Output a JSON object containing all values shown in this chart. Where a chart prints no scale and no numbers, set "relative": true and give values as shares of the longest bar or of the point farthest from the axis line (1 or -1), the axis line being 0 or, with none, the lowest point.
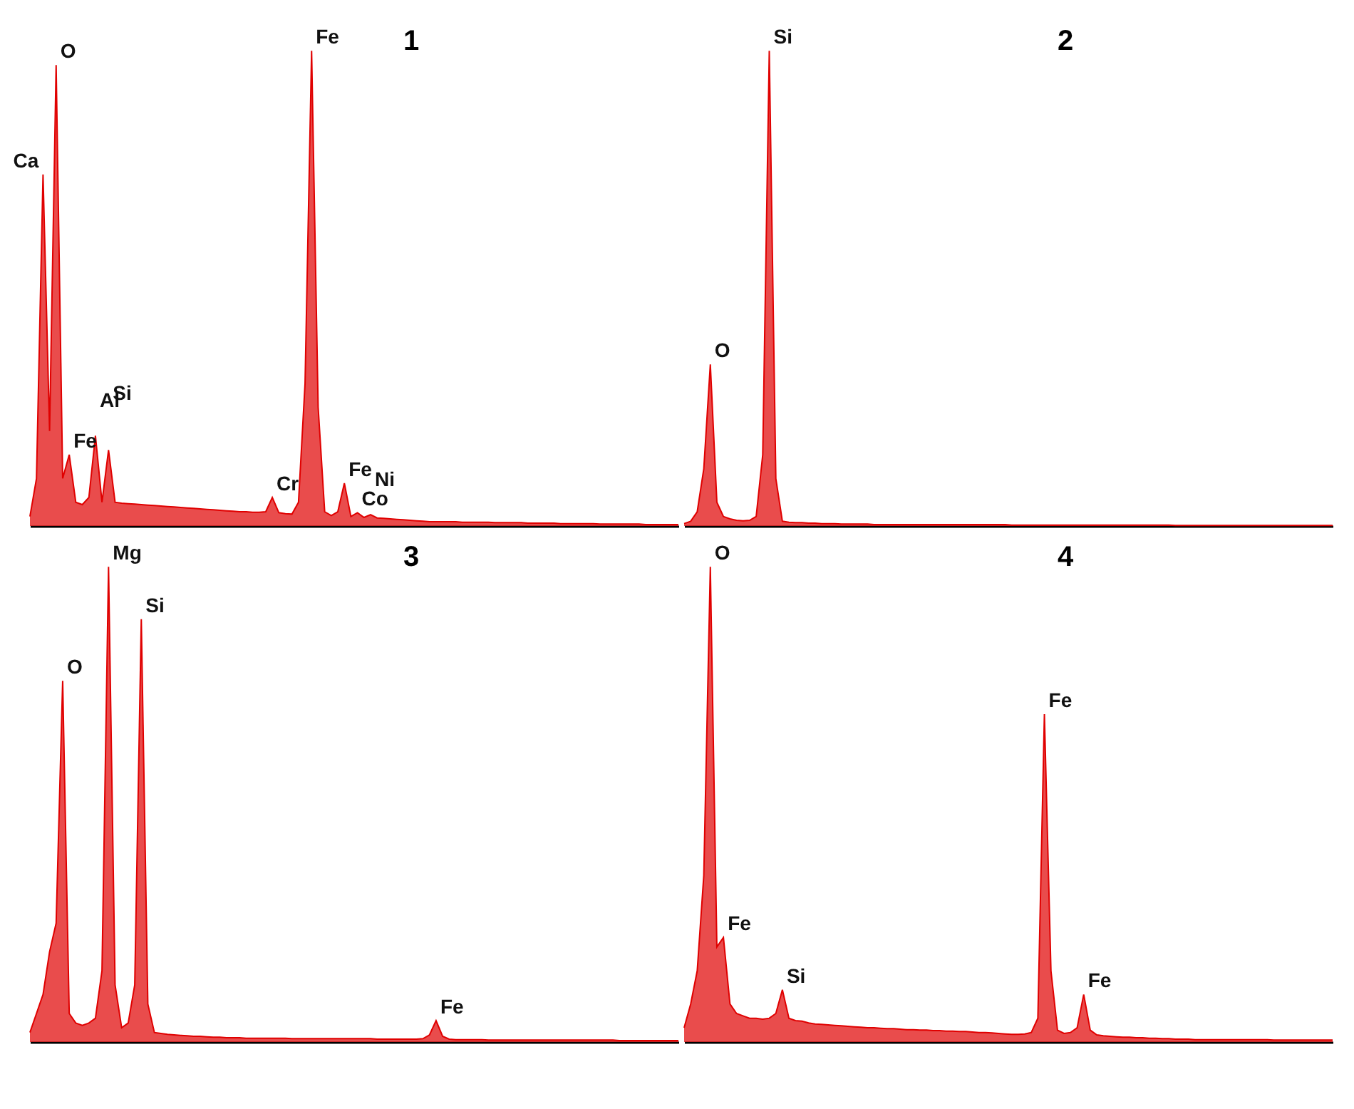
{
  "chart_data": [
    {
      "type": "area",
      "title": "1",
      "relative": true,
      "tick_labels": false,
      "color": "#e00000",
      "categories": [
        null,
        null,
        null,
        null,
        null,
        null,
        null,
        null,
        null,
        null,
        null,
        null,
        null,
        null,
        null,
        null,
        null,
        null,
        null,
        null,
        null,
        null,
        null,
        null,
        null,
        null,
        null,
        null,
        null,
        null,
        null,
        null,
        null,
        null,
        null,
        null,
        null,
        null,
        null,
        null,
        null,
        null,
        null,
        null,
        null,
        null,
        null,
        null,
        null,
        null,
        null,
        null,
        null,
        null,
        null,
        null,
        null,
        null,
        null,
        null,
        null,
        null,
        null,
        null,
        null,
        null,
        null,
        null,
        null,
        null,
        null,
        null,
        null,
        null,
        null,
        null,
        null,
        null,
        null,
        null,
        null,
        null,
        null,
        null,
        null,
        null,
        null,
        null,
        null,
        null,
        null,
        null,
        null,
        null,
        null,
        null,
        null,
        null,
        null,
        null
      ],
      "values": [
        0.02,
        0.1,
        0.74,
        0.2,
        0.97,
        0.1,
        0.15,
        0.05,
        0.045,
        0.06,
        0.19,
        0.05,
        0.16,
        0.05,
        0.048,
        0.047,
        0.046,
        0.045,
        0.044,
        0.043,
        0.042,
        0.041,
        0.04,
        0.039,
        0.038,
        0.037,
        0.036,
        0.035,
        0.034,
        0.033,
        0.032,
        0.031,
        0.03,
        0.03,
        0.029,
        0.029,
        0.03,
        0.06,
        0.028,
        0.026,
        0.025,
        0.05,
        0.3,
        1,
        0.25,
        0.03,
        0.022,
        0.03,
        0.09,
        0.02,
        0.028,
        0.018,
        0.024,
        0.017,
        0.016,
        0.015,
        0.014,
        0.013,
        0.012,
        0.011,
        0.01,
        0.009,
        0.009,
        0.009,
        0.009,
        0.009,
        0.008,
        0.008,
        0.008,
        0.008,
        0.008,
        0.007,
        0.007,
        0.007,
        0.007,
        0.007,
        0.006,
        0.006,
        0.006,
        0.006,
        0.006,
        0.005,
        0.005,
        0.005,
        0.005,
        0.005,
        0.005,
        0.004,
        0.004,
        0.004,
        0.004,
        0.004,
        0.004,
        0.004,
        0.003,
        0.003,
        0.003,
        0.003,
        0.003,
        0.003
      ],
      "annotations": [
        "Ca",
        "O",
        "Fe",
        "Al",
        "Si",
        "Cr",
        "Fe",
        "Fe",
        "Co",
        "Ni"
      ]
    },
    {
      "type": "area",
      "title": "2",
      "relative": true,
      "tick_labels": false,
      "color": "#e00000",
      "categories": [
        null,
        null,
        null,
        null,
        null,
        null,
        null,
        null,
        null,
        null,
        null,
        null,
        null,
        null,
        null,
        null,
        null,
        null,
        null,
        null,
        null,
        null,
        null,
        null,
        null,
        null,
        null,
        null,
        null,
        null,
        null,
        null,
        null,
        null,
        null,
        null,
        null,
        null,
        null,
        null,
        null,
        null,
        null,
        null,
        null,
        null,
        null,
        null,
        null,
        null,
        null,
        null,
        null,
        null,
        null,
        null,
        null,
        null,
        null,
        null,
        null,
        null,
        null,
        null,
        null,
        null,
        null,
        null,
        null,
        null,
        null,
        null,
        null,
        null,
        null,
        null,
        null,
        null,
        null,
        null,
        null,
        null,
        null,
        null,
        null,
        null,
        null,
        null,
        null,
        null,
        null,
        null,
        null,
        null,
        null,
        null,
        null,
        null,
        null,
        null
      ],
      "values": [
        0.005,
        0.01,
        0.03,
        0.12,
        0.34,
        0.05,
        0.02,
        0.015,
        0.012,
        0.011,
        0.012,
        0.02,
        0.15,
        1,
        0.1,
        0.01,
        0.008,
        0.007,
        0.007,
        0.006,
        0.006,
        0.005,
        0.005,
        0.005,
        0.004,
        0.004,
        0.004,
        0.004,
        0.004,
        0.003,
        0.003,
        0.003,
        0.003,
        0.003,
        0.003,
        0.003,
        0.003,
        0.003,
        0.003,
        0.003,
        0.003,
        0.003,
        0.003,
        0.003,
        0.003,
        0.003,
        0.003,
        0.003,
        0.003,
        0.003,
        0.002,
        0.002,
        0.002,
        0.002,
        0.002,
        0.002,
        0.002,
        0.002,
        0.002,
        0.002,
        0.002,
        0.002,
        0.002,
        0.002,
        0.002,
        0.002,
        0.002,
        0.002,
        0.002,
        0.002,
        0.002,
        0.002,
        0.002,
        0.002,
        0.002,
        0.001,
        0.001,
        0.001,
        0.001,
        0.001,
        0.001,
        0.001,
        0.001,
        0.001,
        0.001,
        0.001,
        0.001,
        0.001,
        0.001,
        0.001,
        0.001,
        0.001,
        0.001,
        0.001,
        0.001,
        0.001,
        0.001,
        0.001,
        0.001,
        0.001
      ],
      "annotations": [
        "O",
        "Si"
      ]
    },
    {
      "type": "area",
      "title": "3",
      "relative": true,
      "tick_labels": false,
      "color": "#e00000",
      "categories": [
        null,
        null,
        null,
        null,
        null,
        null,
        null,
        null,
        null,
        null,
        null,
        null,
        null,
        null,
        null,
        null,
        null,
        null,
        null,
        null,
        null,
        null,
        null,
        null,
        null,
        null,
        null,
        null,
        null,
        null,
        null,
        null,
        null,
        null,
        null,
        null,
        null,
        null,
        null,
        null,
        null,
        null,
        null,
        null,
        null,
        null,
        null,
        null,
        null,
        null,
        null,
        null,
        null,
        null,
        null,
        null,
        null,
        null,
        null,
        null,
        null,
        null,
        null,
        null,
        null,
        null,
        null,
        null,
        null,
        null,
        null,
        null,
        null,
        null,
        null,
        null,
        null,
        null,
        null,
        null,
        null,
        null,
        null,
        null,
        null,
        null,
        null,
        null,
        null,
        null,
        null,
        null,
        null,
        null,
        null,
        null,
        null,
        null,
        null,
        null
      ],
      "values": [
        0.02,
        0.06,
        0.1,
        0.19,
        0.25,
        0.76,
        0.06,
        0.04,
        0.035,
        0.04,
        0.05,
        0.15,
        1,
        0.12,
        0.03,
        0.04,
        0.12,
        0.89,
        0.08,
        0.02,
        0.018,
        0.016,
        0.015,
        0.014,
        0.013,
        0.012,
        0.012,
        0.011,
        0.01,
        0.01,
        0.009,
        0.009,
        0.009,
        0.008,
        0.008,
        0.008,
        0.008,
        0.008,
        0.008,
        0.008,
        0.007,
        0.007,
        0.007,
        0.007,
        0.007,
        0.007,
        0.007,
        0.007,
        0.007,
        0.007,
        0.007,
        0.007,
        0.007,
        0.006,
        0.006,
        0.006,
        0.006,
        0.006,
        0.006,
        0.006,
        0.007,
        0.015,
        0.045,
        0.012,
        0.006,
        0.005,
        0.005,
        0.005,
        0.005,
        0.005,
        0.004,
        0.004,
        0.004,
        0.004,
        0.004,
        0.004,
        0.004,
        0.004,
        0.004,
        0.004,
        0.004,
        0.004,
        0.004,
        0.004,
        0.004,
        0.004,
        0.004,
        0.004,
        0.004,
        0.004,
        0.003,
        0.003,
        0.003,
        0.003,
        0.003,
        0.003,
        0.003,
        0.003,
        0.003,
        0.003
      ],
      "annotations": [
        "O",
        "Mg",
        "Si",
        "Fe"
      ]
    },
    {
      "type": "area",
      "title": "4",
      "relative": true,
      "tick_labels": false,
      "color": "#e00000",
      "categories": [
        null,
        null,
        null,
        null,
        null,
        null,
        null,
        null,
        null,
        null,
        null,
        null,
        null,
        null,
        null,
        null,
        null,
        null,
        null,
        null,
        null,
        null,
        null,
        null,
        null,
        null,
        null,
        null,
        null,
        null,
        null,
        null,
        null,
        null,
        null,
        null,
        null,
        null,
        null,
        null,
        null,
        null,
        null,
        null,
        null,
        null,
        null,
        null,
        null,
        null,
        null,
        null,
        null,
        null,
        null,
        null,
        null,
        null,
        null,
        null,
        null,
        null,
        null,
        null,
        null,
        null,
        null,
        null,
        null,
        null,
        null,
        null,
        null,
        null,
        null,
        null,
        null,
        null,
        null,
        null,
        null,
        null,
        null,
        null,
        null,
        null,
        null,
        null,
        null,
        null,
        null,
        null,
        null,
        null,
        null,
        null,
        null,
        null,
        null,
        null
      ],
      "values": [
        0.03,
        0.08,
        0.15,
        0.35,
        1,
        0.2,
        0.22,
        0.08,
        0.06,
        0.055,
        0.05,
        0.05,
        0.048,
        0.05,
        0.06,
        0.11,
        0.05,
        0.045,
        0.044,
        0.04,
        0.038,
        0.037,
        0.036,
        0.035,
        0.034,
        0.033,
        0.032,
        0.031,
        0.03,
        0.03,
        0.029,
        0.028,
        0.028,
        0.027,
        0.026,
        0.026,
        0.025,
        0.025,
        0.024,
        0.024,
        0.023,
        0.023,
        0.022,
        0.022,
        0.021,
        0.02,
        0.02,
        0.019,
        0.018,
        0.017,
        0.016,
        0.016,
        0.017,
        0.02,
        0.05,
        0.69,
        0.15,
        0.025,
        0.018,
        0.02,
        0.03,
        0.1,
        0.025,
        0.015,
        0.013,
        0.012,
        0.011,
        0.01,
        0.01,
        0.009,
        0.009,
        0.008,
        0.008,
        0.007,
        0.007,
        0.006,
        0.006,
        0.006,
        0.005,
        0.005,
        0.005,
        0.005,
        0.005,
        0.005,
        0.005,
        0.005,
        0.005,
        0.005,
        0.005,
        0.005,
        0.004,
        0.004,
        0.004,
        0.004,
        0.004,
        0.004,
        0.004,
        0.004,
        0.004,
        0.004
      ],
      "annotations": [
        "O",
        "Fe",
        "Si",
        "Fe",
        "Fe"
      ]
    }
  ]
}
